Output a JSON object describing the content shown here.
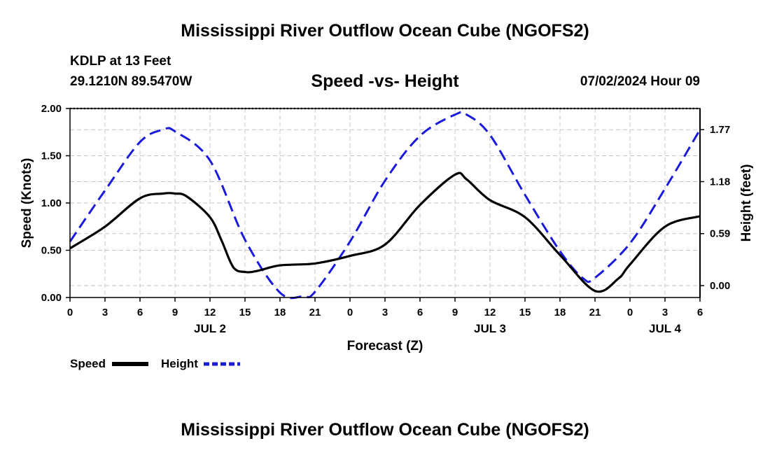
{
  "page": {
    "title": "Mississippi River Outflow Ocean Cube (NGOFS2)",
    "footer_title": "Mississippi River Outflow Ocean Cube (NGOFS2)",
    "station_line": "KDLP at 13 Feet",
    "coords_line": "29.1210N  89.5470W",
    "subtitle": "Speed -vs- Height",
    "datetime": "07/02/2024 Hour 09"
  },
  "chart_data": {
    "type": "line",
    "title": "Speed -vs- Height",
    "xlabel": "Forecast (Z)",
    "ylabel": "Speed (Knots)",
    "y2label": "Height (feet)",
    "grid": true,
    "legend_position": "bottom-left",
    "x_ticks": [
      "0",
      "3",
      "6",
      "9",
      "12",
      "15",
      "18",
      "21",
      "0",
      "3",
      "6",
      "9",
      "12",
      "15",
      "18",
      "21",
      "0",
      "3",
      "6"
    ],
    "date_labels": [
      {
        "label": "JUL 2",
        "x": 12
      },
      {
        "label": "JUL 3",
        "x": 36
      },
      {
        "label": "JUL 4",
        "x": 51
      }
    ],
    "xlim": [
      0,
      54
    ],
    "ylim": [
      0,
      2.0
    ],
    "y_ticks": [
      "0.00",
      "0.50",
      "1.00",
      "1.50",
      "2.00"
    ],
    "y2lim": [
      -0.135,
      2.01
    ],
    "y2_ticks": [
      "0.00",
      "0.59",
      "1.18",
      "1.77"
    ],
    "series": [
      {
        "name": "Speed",
        "color": "#000000",
        "axis": "left",
        "dash": "solid",
        "x": [
          0,
          3,
          6,
          8,
          9,
          10,
          12,
          13,
          14,
          15,
          16,
          18,
          21,
          24,
          27,
          30,
          33,
          34,
          36,
          39,
          42,
          45,
          47,
          48,
          51,
          54
        ],
        "y": [
          0.52,
          0.75,
          1.05,
          1.1,
          1.1,
          1.07,
          0.85,
          0.6,
          0.32,
          0.27,
          0.28,
          0.34,
          0.36,
          0.44,
          0.56,
          0.98,
          1.3,
          1.25,
          1.03,
          0.85,
          0.45,
          0.07,
          0.2,
          0.35,
          0.75,
          0.86
        ]
      },
      {
        "name": "Height",
        "color": "#1a1adc",
        "axis": "right",
        "dash": "dashed",
        "x": [
          0,
          3,
          6,
          8,
          9,
          12,
          15,
          18,
          20,
          21,
          24,
          27,
          30,
          33,
          34,
          36,
          39,
          42,
          44,
          45,
          48,
          51,
          54
        ],
        "y": [
          0.5,
          1.08,
          1.63,
          1.77,
          1.75,
          1.42,
          0.52,
          -0.08,
          -0.12,
          -0.07,
          0.5,
          1.19,
          1.7,
          1.94,
          1.94,
          1.71,
          1.03,
          0.39,
          0.08,
          0.09,
          0.48,
          1.1,
          1.77
        ]
      }
    ]
  }
}
